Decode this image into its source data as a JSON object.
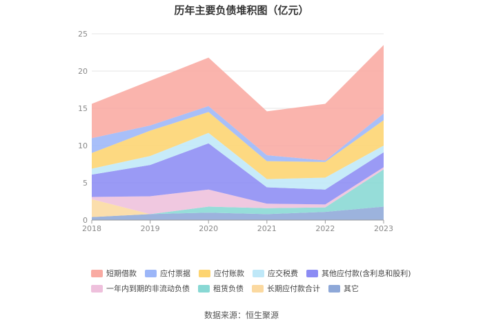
{
  "chart_data": {
    "type": "area",
    "stacked": true,
    "title": "历年主要负债堆积图（亿元）",
    "x": [
      "2018",
      "2019",
      "2020",
      "2021",
      "2022",
      "2023"
    ],
    "ylim": [
      0,
      25
    ],
    "yticks": [
      "0",
      "5",
      "10",
      "15",
      "20",
      "25"
    ],
    "grid": true,
    "legend_position": "bottom",
    "series": [
      {
        "name": "其它",
        "color": "#8ea8d8",
        "values": [
          0.4,
          0.8,
          1.0,
          0.8,
          1.1,
          1.8
        ]
      },
      {
        "name": "长期应付款合计",
        "color": "#fbd9a0",
        "values": [
          2.4,
          0.0,
          0.0,
          0.0,
          0.0,
          0.0
        ]
      },
      {
        "name": "租赁负债",
        "color": "#88d8d4",
        "values": [
          0.0,
          0.0,
          0.8,
          0.8,
          0.6,
          5.0
        ]
      },
      {
        "name": "一年内到期的非流动负债",
        "color": "#eec0dc",
        "values": [
          0.3,
          2.4,
          2.3,
          0.6,
          0.4,
          0.3
        ]
      },
      {
        "name": "其他应付款(含利息和股利)",
        "color": "#8c8cf4",
        "values": [
          3.0,
          4.2,
          6.2,
          2.2,
          2.0,
          2.0
        ]
      },
      {
        "name": "应交税费",
        "color": "#bfe8f8",
        "values": [
          0.8,
          1.2,
          1.4,
          1.1,
          1.6,
          0.9
        ]
      },
      {
        "name": "应付账款",
        "color": "#fdd470",
        "values": [
          2.1,
          3.4,
          2.8,
          2.4,
          2.1,
          3.4
        ]
      },
      {
        "name": "应付票据",
        "color": "#9cb6f8",
        "values": [
          2.0,
          0.7,
          0.8,
          0.8,
          0.2,
          0.9
        ]
      },
      {
        "name": "短期借款",
        "color": "#f9aaa2",
        "values": [
          4.6,
          6.0,
          6.5,
          5.9,
          7.6,
          9.2
        ]
      }
    ]
  },
  "legend": {
    "row1": [
      {
        "label": "短期借款",
        "color": "#f9aaa2"
      },
      {
        "label": "应付票据",
        "color": "#9cb6f8"
      },
      {
        "label": "应付账款",
        "color": "#fdd470"
      },
      {
        "label": "应交税费",
        "color": "#bfe8f8"
      },
      {
        "label": "其他应付款(含利息和股利)",
        "color": "#8c8cf4"
      }
    ],
    "row2": [
      {
        "label": "一年内到期的非流动负债",
        "color": "#eec0dc"
      },
      {
        "label": "租赁负债",
        "color": "#88d8d4"
      },
      {
        "label": "长期应付款合计",
        "color": "#fbd9a0"
      },
      {
        "label": "其它",
        "color": "#8ea8d8"
      }
    ]
  },
  "source": "数据来源：恒生聚源"
}
